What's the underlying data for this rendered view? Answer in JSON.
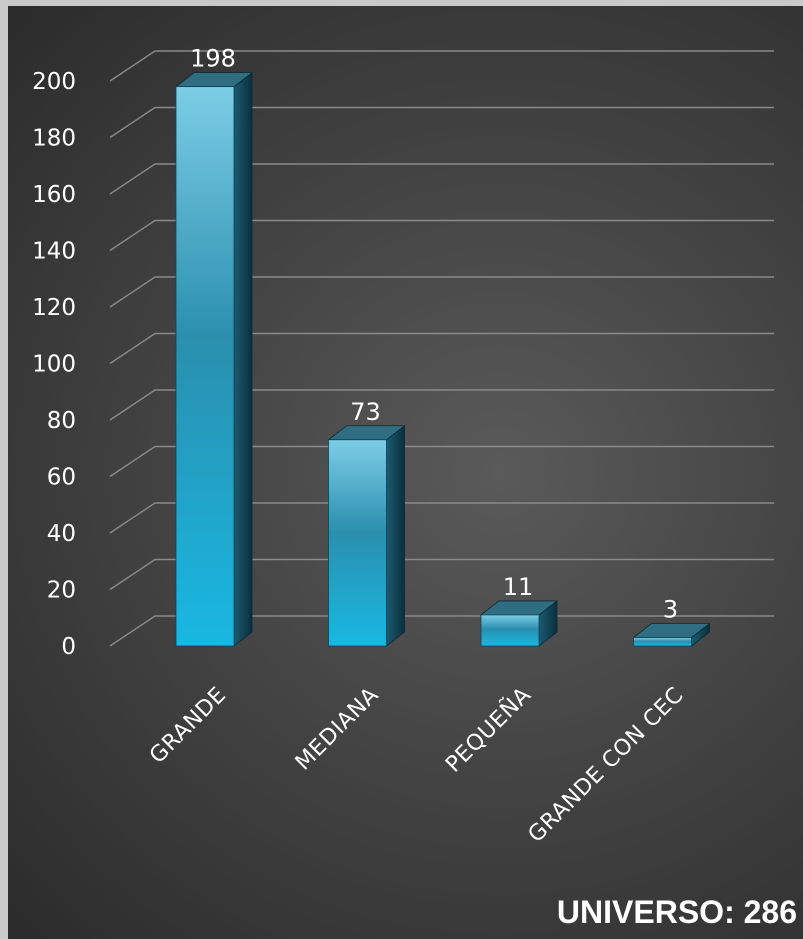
{
  "chart_data": {
    "type": "bar",
    "categories": [
      "GRANDE",
      "MEDIANA",
      "PEQUEÑA",
      "GRANDE CON CEC"
    ],
    "values": [
      198,
      73,
      11,
      3
    ],
    "data_labels": [
      "198",
      "73",
      "11",
      "3"
    ],
    "ylim": [
      0,
      200
    ],
    "y_ticks": [
      "0",
      "20",
      "40",
      "60",
      "80",
      "100",
      "120",
      "140",
      "160",
      "180",
      "200"
    ],
    "grid": true,
    "legend": "none",
    "style": "3d-column",
    "colors": {
      "bar_front_top": "#7ccde6",
      "bar_front_mid": "#2a8fae",
      "bar_front_bottom": "#18b8e2",
      "bar_side": "#0d3f52",
      "bar_top": "#2f6d82",
      "gridline": "#8a8a8a",
      "text": "#ffffff"
    }
  },
  "footer": {
    "universe_label": "UNIVERSO: 286"
  }
}
